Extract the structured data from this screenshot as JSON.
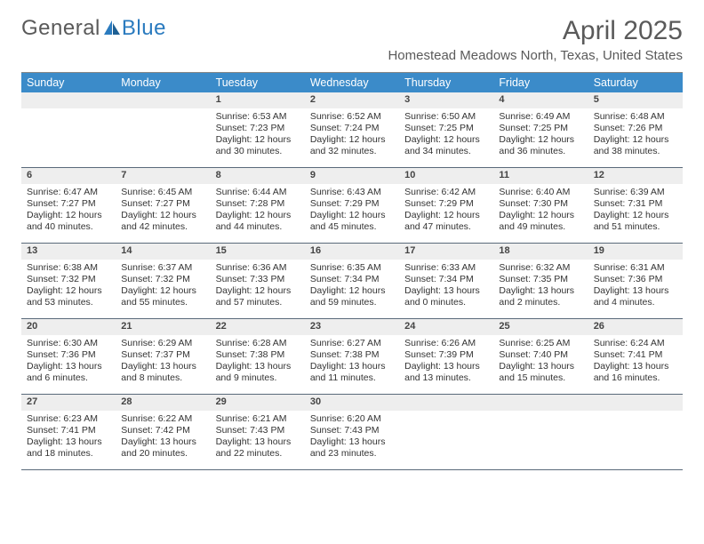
{
  "brand": {
    "part1": "General",
    "part2": "Blue"
  },
  "title": "April 2025",
  "location": "Homestead Meadows North, Texas, United States",
  "colors": {
    "header_bg": "#3b8bc9",
    "header_text": "#ffffff",
    "daynum_bg": "#eeeeee",
    "border": "#5a6a7a",
    "logo_gray": "#5a5a5a",
    "logo_blue": "#2b7bbf"
  },
  "fonts": {
    "title_size_pt": 22,
    "location_size_pt": 11,
    "dow_size_pt": 9,
    "cell_size_pt": 8
  },
  "day_names": [
    "Sunday",
    "Monday",
    "Tuesday",
    "Wednesday",
    "Thursday",
    "Friday",
    "Saturday"
  ],
  "weeks": [
    [
      null,
      null,
      {
        "n": "1",
        "sr": "Sunrise: 6:53 AM",
        "ss": "Sunset: 7:23 PM",
        "d1": "Daylight: 12 hours",
        "d2": "and 30 minutes."
      },
      {
        "n": "2",
        "sr": "Sunrise: 6:52 AM",
        "ss": "Sunset: 7:24 PM",
        "d1": "Daylight: 12 hours",
        "d2": "and 32 minutes."
      },
      {
        "n": "3",
        "sr": "Sunrise: 6:50 AM",
        "ss": "Sunset: 7:25 PM",
        "d1": "Daylight: 12 hours",
        "d2": "and 34 minutes."
      },
      {
        "n": "4",
        "sr": "Sunrise: 6:49 AM",
        "ss": "Sunset: 7:25 PM",
        "d1": "Daylight: 12 hours",
        "d2": "and 36 minutes."
      },
      {
        "n": "5",
        "sr": "Sunrise: 6:48 AM",
        "ss": "Sunset: 7:26 PM",
        "d1": "Daylight: 12 hours",
        "d2": "and 38 minutes."
      }
    ],
    [
      {
        "n": "6",
        "sr": "Sunrise: 6:47 AM",
        "ss": "Sunset: 7:27 PM",
        "d1": "Daylight: 12 hours",
        "d2": "and 40 minutes."
      },
      {
        "n": "7",
        "sr": "Sunrise: 6:45 AM",
        "ss": "Sunset: 7:27 PM",
        "d1": "Daylight: 12 hours",
        "d2": "and 42 minutes."
      },
      {
        "n": "8",
        "sr": "Sunrise: 6:44 AM",
        "ss": "Sunset: 7:28 PM",
        "d1": "Daylight: 12 hours",
        "d2": "and 44 minutes."
      },
      {
        "n": "9",
        "sr": "Sunrise: 6:43 AM",
        "ss": "Sunset: 7:29 PM",
        "d1": "Daylight: 12 hours",
        "d2": "and 45 minutes."
      },
      {
        "n": "10",
        "sr": "Sunrise: 6:42 AM",
        "ss": "Sunset: 7:29 PM",
        "d1": "Daylight: 12 hours",
        "d2": "and 47 minutes."
      },
      {
        "n": "11",
        "sr": "Sunrise: 6:40 AM",
        "ss": "Sunset: 7:30 PM",
        "d1": "Daylight: 12 hours",
        "d2": "and 49 minutes."
      },
      {
        "n": "12",
        "sr": "Sunrise: 6:39 AM",
        "ss": "Sunset: 7:31 PM",
        "d1": "Daylight: 12 hours",
        "d2": "and 51 minutes."
      }
    ],
    [
      {
        "n": "13",
        "sr": "Sunrise: 6:38 AM",
        "ss": "Sunset: 7:32 PM",
        "d1": "Daylight: 12 hours",
        "d2": "and 53 minutes."
      },
      {
        "n": "14",
        "sr": "Sunrise: 6:37 AM",
        "ss": "Sunset: 7:32 PM",
        "d1": "Daylight: 12 hours",
        "d2": "and 55 minutes."
      },
      {
        "n": "15",
        "sr": "Sunrise: 6:36 AM",
        "ss": "Sunset: 7:33 PM",
        "d1": "Daylight: 12 hours",
        "d2": "and 57 minutes."
      },
      {
        "n": "16",
        "sr": "Sunrise: 6:35 AM",
        "ss": "Sunset: 7:34 PM",
        "d1": "Daylight: 12 hours",
        "d2": "and 59 minutes."
      },
      {
        "n": "17",
        "sr": "Sunrise: 6:33 AM",
        "ss": "Sunset: 7:34 PM",
        "d1": "Daylight: 13 hours",
        "d2": "and 0 minutes."
      },
      {
        "n": "18",
        "sr": "Sunrise: 6:32 AM",
        "ss": "Sunset: 7:35 PM",
        "d1": "Daylight: 13 hours",
        "d2": "and 2 minutes."
      },
      {
        "n": "19",
        "sr": "Sunrise: 6:31 AM",
        "ss": "Sunset: 7:36 PM",
        "d1": "Daylight: 13 hours",
        "d2": "and 4 minutes."
      }
    ],
    [
      {
        "n": "20",
        "sr": "Sunrise: 6:30 AM",
        "ss": "Sunset: 7:36 PM",
        "d1": "Daylight: 13 hours",
        "d2": "and 6 minutes."
      },
      {
        "n": "21",
        "sr": "Sunrise: 6:29 AM",
        "ss": "Sunset: 7:37 PM",
        "d1": "Daylight: 13 hours",
        "d2": "and 8 minutes."
      },
      {
        "n": "22",
        "sr": "Sunrise: 6:28 AM",
        "ss": "Sunset: 7:38 PM",
        "d1": "Daylight: 13 hours",
        "d2": "and 9 minutes."
      },
      {
        "n": "23",
        "sr": "Sunrise: 6:27 AM",
        "ss": "Sunset: 7:38 PM",
        "d1": "Daylight: 13 hours",
        "d2": "and 11 minutes."
      },
      {
        "n": "24",
        "sr": "Sunrise: 6:26 AM",
        "ss": "Sunset: 7:39 PM",
        "d1": "Daylight: 13 hours",
        "d2": "and 13 minutes."
      },
      {
        "n": "25",
        "sr": "Sunrise: 6:25 AM",
        "ss": "Sunset: 7:40 PM",
        "d1": "Daylight: 13 hours",
        "d2": "and 15 minutes."
      },
      {
        "n": "26",
        "sr": "Sunrise: 6:24 AM",
        "ss": "Sunset: 7:41 PM",
        "d1": "Daylight: 13 hours",
        "d2": "and 16 minutes."
      }
    ],
    [
      {
        "n": "27",
        "sr": "Sunrise: 6:23 AM",
        "ss": "Sunset: 7:41 PM",
        "d1": "Daylight: 13 hours",
        "d2": "and 18 minutes."
      },
      {
        "n": "28",
        "sr": "Sunrise: 6:22 AM",
        "ss": "Sunset: 7:42 PM",
        "d1": "Daylight: 13 hours",
        "d2": "and 20 minutes."
      },
      {
        "n": "29",
        "sr": "Sunrise: 6:21 AM",
        "ss": "Sunset: 7:43 PM",
        "d1": "Daylight: 13 hours",
        "d2": "and 22 minutes."
      },
      {
        "n": "30",
        "sr": "Sunrise: 6:20 AM",
        "ss": "Sunset: 7:43 PM",
        "d1": "Daylight: 13 hours",
        "d2": "and 23 minutes."
      },
      null,
      null,
      null
    ]
  ]
}
